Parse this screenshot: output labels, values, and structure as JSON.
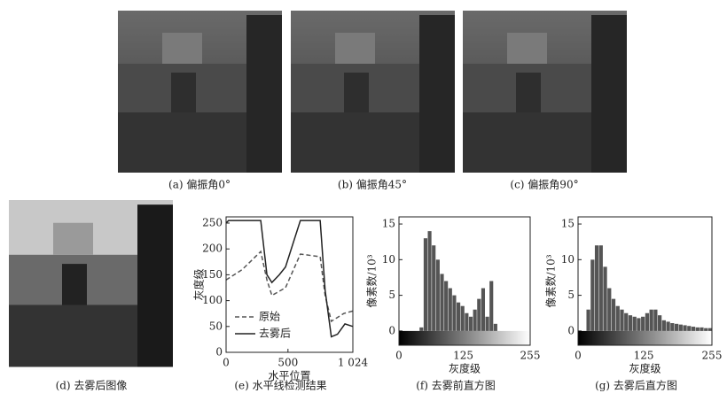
{
  "figures": [
    {
      "caption": "(a) 偏振角0°"
    },
    {
      "caption": "(b) 偏振角45°"
    },
    {
      "caption": "(c) 偏振角90°"
    },
    {
      "caption": "(d) 去雾后图像"
    }
  ],
  "chart_data": [
    {
      "type": "line",
      "caption": "(e) 水平线检测结果",
      "xlabel": "水平位置",
      "ylabel": "灰度级",
      "xlim": [
        0,
        1024
      ],
      "xticks": [
        0,
        500,
        {
          "value": 1024,
          "label": "1 024"
        }
      ],
      "ylim": [
        0,
        262
      ],
      "yticks": [
        0,
        50,
        100,
        150,
        200,
        250
      ],
      "series": [
        {
          "name": "原始",
          "color": "#555555",
          "line_style": "dashed",
          "x": [
            0,
            130,
            280,
            330,
            370,
            480,
            600,
            760,
            800,
            850,
            950,
            1024
          ],
          "values": [
            140,
            160,
            195,
            140,
            110,
            125,
            190,
            185,
            110,
            60,
            75,
            80
          ]
        },
        {
          "name": "去雾后",
          "color": "#222222",
          "line_style": "solid",
          "x": [
            0,
            20,
            130,
            280,
            330,
            370,
            430,
            480,
            600,
            760,
            800,
            850,
            900,
            960,
            1024
          ],
          "values": [
            250,
            255,
            255,
            255,
            150,
            135,
            150,
            165,
            255,
            255,
            120,
            30,
            35,
            55,
            50
          ]
        }
      ]
    },
    {
      "type": "histogram",
      "caption": "(f) 去雾前直方图",
      "xlabel": "灰度级",
      "ylabel": "像素数/10³",
      "color": "#555555",
      "xlim": [
        0,
        255
      ],
      "xticks": [
        0,
        125,
        255
      ],
      "ylim": [
        -2,
        16
      ],
      "yticks": [
        0,
        5,
        10,
        15
      ],
      "bins": [
        0,
        8,
        16,
        24,
        32,
        40,
        48,
        56,
        64,
        72,
        80,
        88,
        96,
        104,
        112,
        120,
        128,
        136,
        144,
        152,
        160,
        168,
        176,
        184,
        192,
        200,
        208,
        216,
        224,
        232,
        240,
        248,
        255
      ],
      "values": [
        0,
        0,
        0,
        0,
        0,
        0.5,
        13,
        14,
        12,
        10,
        8,
        7,
        6,
        5,
        4,
        3.5,
        2.5,
        2,
        3,
        4.5,
        6,
        2,
        7,
        1,
        0,
        0,
        0,
        0,
        0,
        0,
        0,
        0
      ]
    },
    {
      "type": "histogram",
      "caption": "(g) 去雾后直方图",
      "xlabel": "灰度级",
      "ylabel": "像素数/10³",
      "color": "#555555",
      "xlim": [
        0,
        255
      ],
      "xticks": [
        0,
        125,
        255
      ],
      "ylim": [
        -2,
        16
      ],
      "yticks": [
        0,
        5,
        10,
        15
      ],
      "bins": [
        0,
        8,
        16,
        24,
        32,
        40,
        48,
        56,
        64,
        72,
        80,
        88,
        96,
        104,
        112,
        120,
        128,
        136,
        144,
        152,
        160,
        168,
        176,
        184,
        192,
        200,
        208,
        216,
        224,
        232,
        240,
        248,
        255
      ],
      "values": [
        0,
        0,
        3,
        10,
        12,
        12,
        9,
        6,
        4.5,
        3.5,
        3,
        2.5,
        2.2,
        2,
        1.8,
        2,
        2.5,
        3,
        3,
        2.2,
        1.5,
        1.3,
        1.1,
        1,
        0.9,
        0.8,
        0.7,
        0.6,
        0.5,
        0.5,
        0.4,
        0.4
      ]
    }
  ]
}
